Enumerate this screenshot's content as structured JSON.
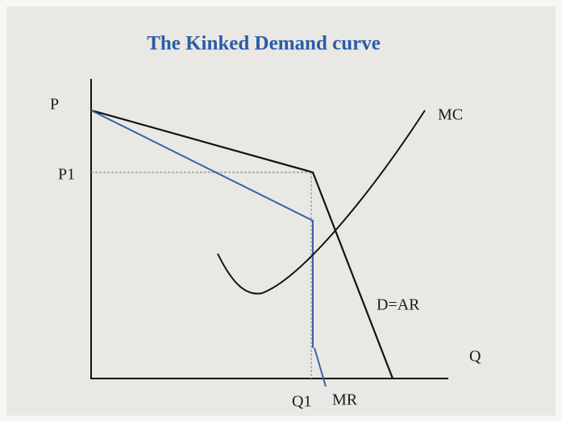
{
  "title": "The Kinked Demand curve",
  "axes": {
    "y_label": "P",
    "x_label": "Q",
    "price_level": "P1",
    "quantity_level": "Q1"
  },
  "curves": {
    "marginal_cost": "MC",
    "demand": "D=AR",
    "marginal_revenue": "MR"
  }
}
